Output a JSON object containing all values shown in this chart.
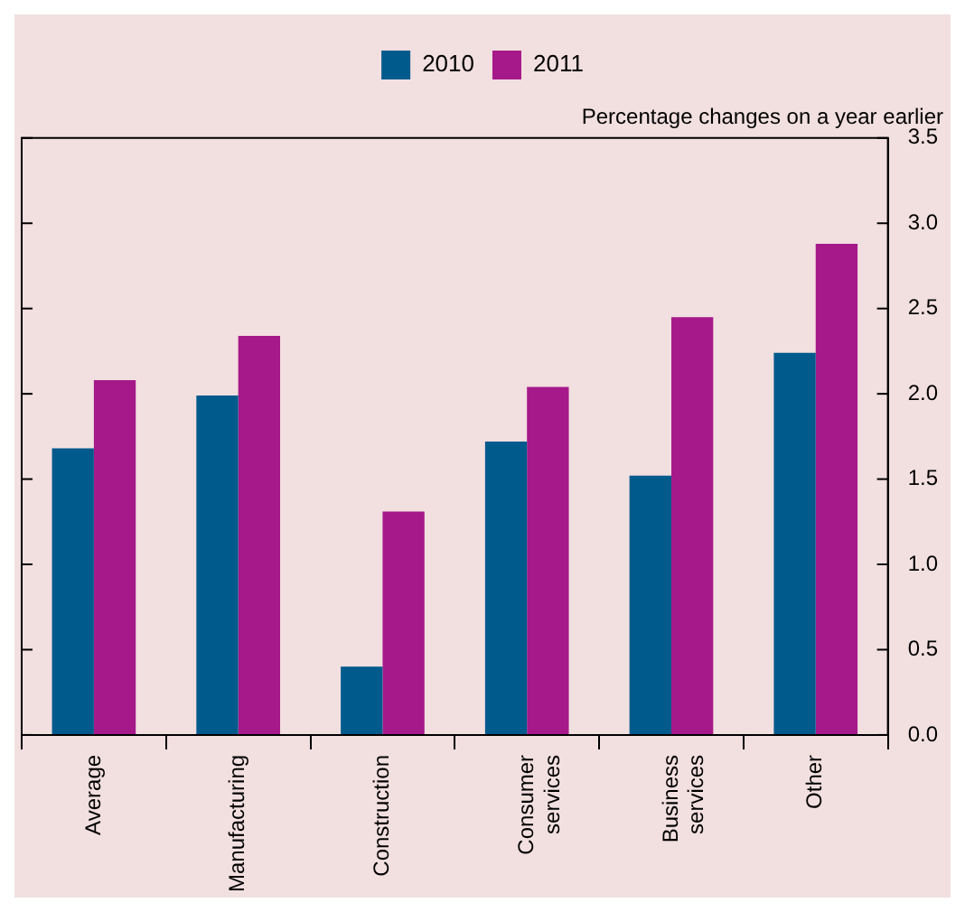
{
  "chart_data": {
    "type": "bar",
    "ylabel": "Percentage changes on a year earlier",
    "categories": [
      "Average",
      "Manufacturing",
      "Construction",
      "Consumer services",
      "Business services",
      "Other"
    ],
    "series": [
      {
        "name": "2010",
        "color": "#005a8c",
        "values": [
          1.68,
          1.99,
          0.4,
          1.72,
          1.52,
          2.24
        ]
      },
      {
        "name": "2011",
        "color": "#a6198a",
        "values": [
          2.08,
          2.34,
          1.31,
          2.04,
          2.45,
          2.88
        ]
      }
    ],
    "ylim": [
      0,
      3.5
    ],
    "yticks": [
      {
        "value": 0,
        "label": "0.0"
      },
      {
        "value": 0.5,
        "label": "0.5"
      },
      {
        "value": 1,
        "label": "1.0"
      },
      {
        "value": 1.5,
        "label": "1.5"
      },
      {
        "value": 2,
        "label": "2.0"
      },
      {
        "value": 2.5,
        "label": "2.5"
      },
      {
        "value": 3,
        "label": "3.0"
      },
      {
        "value": 3.5,
        "label": "3.5"
      }
    ],
    "grid": false,
    "legend": "top"
  }
}
